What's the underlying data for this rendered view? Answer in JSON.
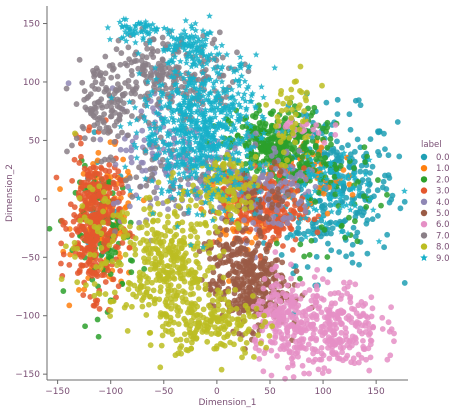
{
  "chart_data": {
    "type": "scatter",
    "title": "",
    "xlabel": "Dimension_1",
    "ylabel": "Dimension_2",
    "xlim": [
      -160,
      180
    ],
    "ylim": [
      -155,
      165
    ],
    "x_ticks": [
      -150,
      -100,
      -50,
      0,
      50,
      100,
      150
    ],
    "y_ticks": [
      -150,
      -100,
      -50,
      0,
      50,
      100,
      150
    ],
    "grid": false,
    "legend": {
      "title": "label",
      "placement": "right",
      "labels": [
        "0.0",
        "1.0",
        "2.0",
        "3.0",
        "4.0",
        "5.0",
        "6.0",
        "7.0",
        "8.0",
        "9.0"
      ]
    },
    "series": [
      {
        "name": "0.0",
        "color": "#1f9fb4",
        "marker": "circle",
        "clusters": [
          {
            "x": 105,
            "y": 10,
            "sx": 32,
            "sy": 32,
            "n": 360
          },
          {
            "x": -110,
            "y": -15,
            "sx": 12,
            "sy": 22,
            "n": 30
          }
        ]
      },
      {
        "name": "1.0",
        "color": "#ff7f0e",
        "marker": "circle",
        "clusters": [
          {
            "x": -105,
            "y": -20,
            "sx": 15,
            "sy": 28,
            "n": 120
          },
          {
            "x": 20,
            "y": -10,
            "sx": 15,
            "sy": 15,
            "n": 70
          },
          {
            "x": 90,
            "y": 20,
            "sx": 20,
            "sy": 18,
            "n": 60
          }
        ]
      },
      {
        "name": "2.0",
        "color": "#2ca02c",
        "marker": "circle",
        "clusters": [
          {
            "x": 55,
            "y": 45,
            "sx": 22,
            "sy": 16,
            "n": 340
          },
          {
            "x": -105,
            "y": -30,
            "sx": 14,
            "sy": 28,
            "n": 110
          },
          {
            "x": 110,
            "y": 5,
            "sx": 25,
            "sy": 25,
            "n": 60
          }
        ]
      },
      {
        "name": "3.0",
        "color": "#e4572e",
        "marker": "circle",
        "clusters": [
          {
            "x": -115,
            "y": -20,
            "sx": 12,
            "sy": 30,
            "n": 350
          },
          {
            "x": 50,
            "y": -10,
            "sx": 16,
            "sy": 18,
            "n": 200
          },
          {
            "x": 20,
            "y": 10,
            "sx": 12,
            "sy": 10,
            "n": 60
          }
        ]
      },
      {
        "name": "4.0",
        "color": "#8f87b5",
        "marker": "circle",
        "clusters": [
          {
            "x": -45,
            "y": 40,
            "sx": 28,
            "sy": 28,
            "n": 130
          },
          {
            "x": 55,
            "y": 10,
            "sx": 18,
            "sy": 20,
            "n": 90
          },
          {
            "x": 5,
            "y": 15,
            "sx": 20,
            "sy": 15,
            "n": 60
          }
        ]
      },
      {
        "name": "5.0",
        "color": "#9a5b45",
        "marker": "circle",
        "clusters": [
          {
            "x": 30,
            "y": -75,
            "sx": 18,
            "sy": 18,
            "n": 330
          },
          {
            "x": 10,
            "y": -40,
            "sx": 12,
            "sy": 10,
            "n": 40
          },
          {
            "x": 45,
            "y": 0,
            "sx": 14,
            "sy": 14,
            "n": 40
          }
        ]
      },
      {
        "name": "6.0",
        "color": "#e58fc5",
        "marker": "circle",
        "clusters": [
          {
            "x": 105,
            "y": -110,
            "sx": 24,
            "sy": 20,
            "n": 320
          },
          {
            "x": 60,
            "y": -105,
            "sx": 12,
            "sy": 18,
            "n": 140
          },
          {
            "x": 80,
            "y": 60,
            "sx": 14,
            "sy": 8,
            "n": 25
          }
        ]
      },
      {
        "name": "7.0",
        "color": "#8a7f87",
        "marker": "circle",
        "clusters": [
          {
            "x": -60,
            "y": 110,
            "sx": 20,
            "sy": 14,
            "n": 140
          },
          {
            "x": -105,
            "y": 80,
            "sx": 15,
            "sy": 20,
            "n": 120
          },
          {
            "x": -20,
            "y": 100,
            "sx": 22,
            "sy": 18,
            "n": 80
          },
          {
            "x": -40,
            "y": 20,
            "sx": 25,
            "sy": 18,
            "n": 60
          }
        ]
      },
      {
        "name": "8.0",
        "color": "#bcbd22",
        "marker": "circle",
        "clusters": [
          {
            "x": -45,
            "y": -60,
            "sx": 20,
            "sy": 30,
            "n": 360
          },
          {
            "x": 10,
            "y": 10,
            "sx": 15,
            "sy": 14,
            "n": 120
          },
          {
            "x": 0,
            "y": -105,
            "sx": 22,
            "sy": 14,
            "n": 160
          },
          {
            "x": -115,
            "y": -35,
            "sx": 15,
            "sy": 30,
            "n": 60
          },
          {
            "x": 70,
            "y": 70,
            "sx": 12,
            "sy": 20,
            "n": 50
          }
        ]
      },
      {
        "name": "9.0",
        "color": "#17b0c9",
        "marker": "star",
        "clusters": [
          {
            "x": -15,
            "y": 60,
            "sx": 28,
            "sy": 30,
            "n": 650
          },
          {
            "x": -25,
            "y": 130,
            "sx": 15,
            "sy": 8,
            "n": 90
          },
          {
            "x": -75,
            "y": 145,
            "sx": 12,
            "sy": 5,
            "n": 50
          },
          {
            "x": 105,
            "y": 5,
            "sx": 20,
            "sy": 20,
            "n": 80
          }
        ]
      }
    ]
  }
}
